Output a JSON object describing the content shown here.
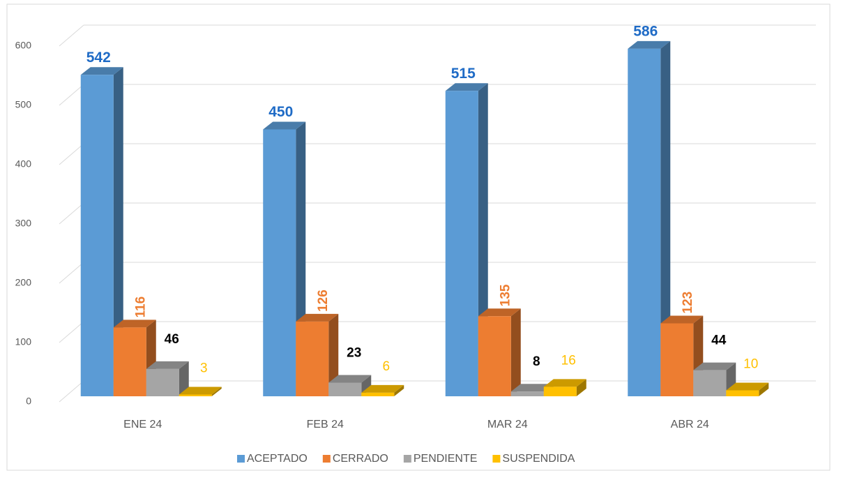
{
  "chart_data": {
    "type": "bar3d",
    "categories": [
      "ENE 24",
      "FEB 24",
      "MAR 24",
      "ABR 24"
    ],
    "series": [
      {
        "name": "ACEPTADO",
        "color": "#5b9bd5",
        "values": [
          542,
          450,
          515,
          586
        ]
      },
      {
        "name": "CERRADO",
        "color": "#ed7d31",
        "values": [
          116,
          126,
          135,
          123
        ]
      },
      {
        "name": "PENDIENTE",
        "color": "#a5a5a5",
        "values": [
          46,
          23,
          8,
          44
        ]
      },
      {
        "name": "SUSPENDIDA",
        "color": "#ffc000",
        "values": [
          3,
          6,
          16,
          10
        ]
      }
    ],
    "ylim": [
      0,
      600
    ],
    "yticks": [
      0,
      100,
      200,
      300,
      400,
      500,
      600
    ],
    "grid": true,
    "legend": "bottom"
  }
}
